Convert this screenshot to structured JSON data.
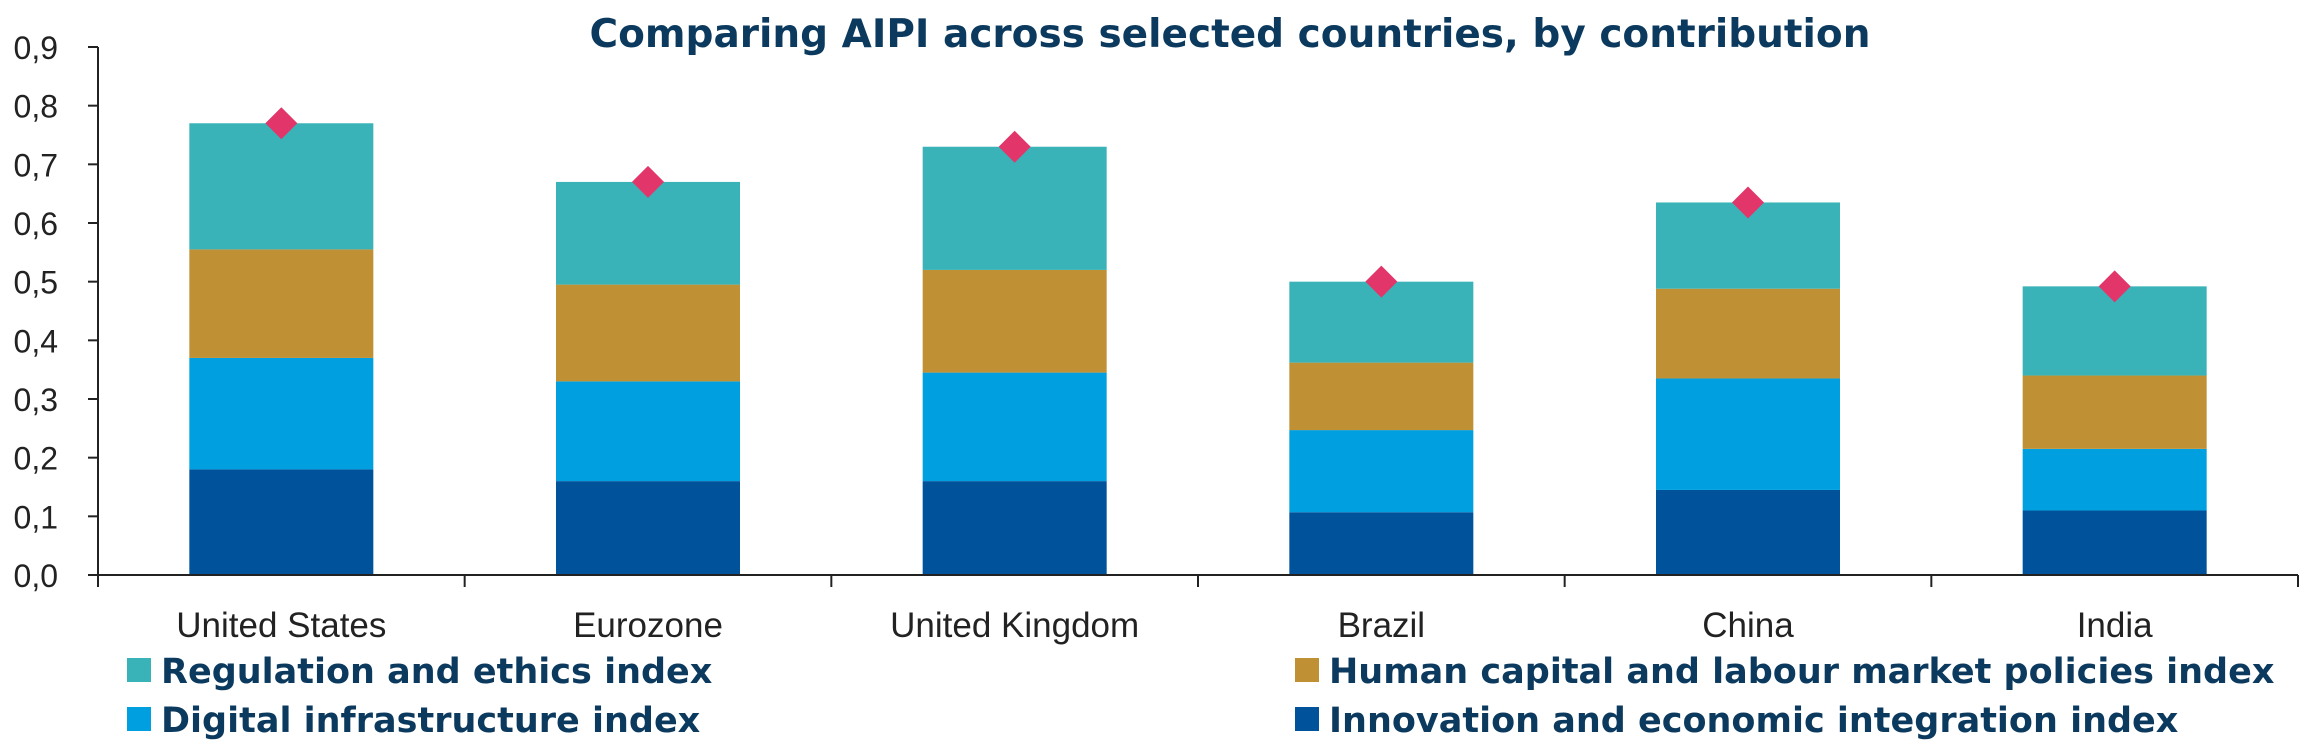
{
  "chart_data": {
    "type": "bar",
    "stacked": true,
    "title": "Comparing AIPI across selected countries, by contribution",
    "xlabel": "",
    "ylabel": "",
    "ylim": [
      0,
      0.9
    ],
    "y_ticks": [
      "0,0",
      "0,1",
      "0,2",
      "0,3",
      "0,4",
      "0,5",
      "0,6",
      "0,7",
      "0,8",
      "0,9"
    ],
    "grid": false,
    "legend_position": "bottom",
    "categories": [
      "United States",
      "Eurozone",
      "United Kingdom",
      "Brazil",
      "China",
      "India"
    ],
    "series": [
      {
        "name": "Innovation and economic integration index",
        "color": "#00529b",
        "values": [
          0.18,
          0.16,
          0.16,
          0.107,
          0.145,
          0.11
        ]
      },
      {
        "name": "Digital infrastructure index",
        "color": "#00a0e0",
        "values": [
          0.19,
          0.17,
          0.185,
          0.14,
          0.19,
          0.105
        ]
      },
      {
        "name": "Human capital and labour market policies index",
        "color": "#c09035",
        "values": [
          0.185,
          0.165,
          0.175,
          0.115,
          0.153,
          0.125
        ]
      },
      {
        "name": "Regulation and ethics index",
        "color": "#3ab3b8",
        "values": [
          0.215,
          0.175,
          0.21,
          0.138,
          0.147,
          0.152
        ]
      }
    ],
    "totals": {
      "marker": "diamond",
      "color": "#e2366b",
      "values": [
        0.77,
        0.67,
        0.73,
        0.5,
        0.635,
        0.492
      ]
    },
    "legend": [
      {
        "label": "Regulation and ethics index",
        "color": "#3ab3b8"
      },
      {
        "label": "Human capital and labour market policies index",
        "color": "#c09035"
      },
      {
        "label": "Digital infrastructure index",
        "color": "#00a0e0"
      },
      {
        "label": "Innovation and economic integration index",
        "color": "#00529b"
      }
    ]
  }
}
